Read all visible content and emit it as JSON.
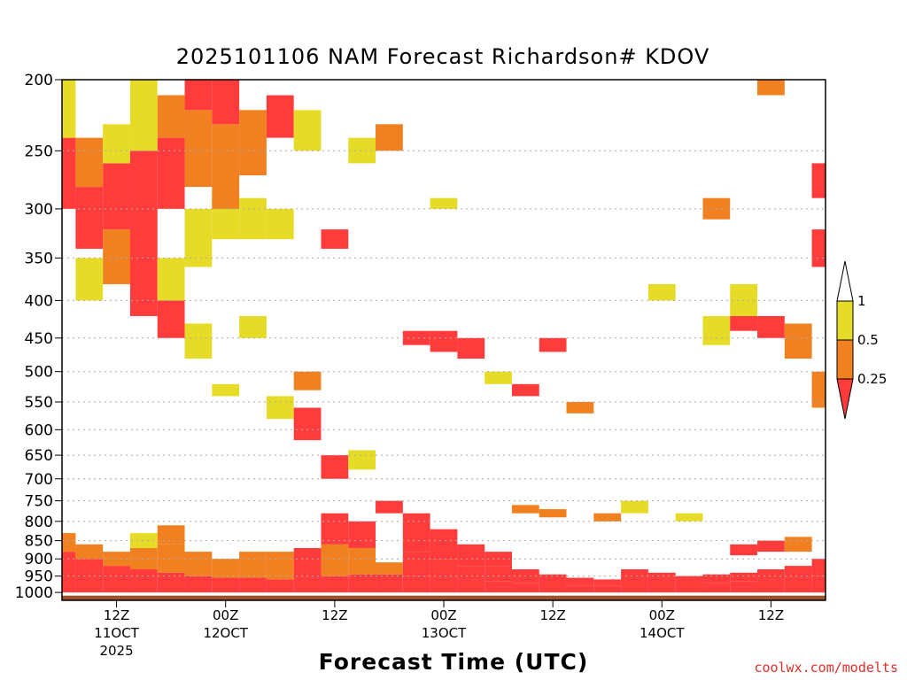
{
  "chart_data": {
    "type": "heatmap",
    "title": "2025101106 NAM Forecast Richardson# KDOV",
    "xlabel": "Forecast Time (UTC)",
    "watermark": "coolwx.com/modelts",
    "y_axis": {
      "ticks": [
        200,
        250,
        300,
        350,
        400,
        450,
        500,
        550,
        600,
        650,
        700,
        750,
        800,
        850,
        900,
        950,
        1000
      ],
      "scale": "log-pressure",
      "range": [
        1025,
        200
      ]
    },
    "x_axis": {
      "range_hours": [
        6,
        90
      ],
      "ticks": [
        {
          "hour": 12,
          "label": "12Z",
          "sub1": "11OCT",
          "sub2": "2025"
        },
        {
          "hour": 24,
          "label": "00Z",
          "sub1": "12OCT",
          "sub2": ""
        },
        {
          "hour": 36,
          "label": "12Z",
          "sub1": "",
          "sub2": ""
        },
        {
          "hour": 48,
          "label": "00Z",
          "sub1": "13OCT",
          "sub2": ""
        },
        {
          "hour": 60,
          "label": "12Z",
          "sub1": "",
          "sub2": ""
        },
        {
          "hour": 72,
          "label": "00Z",
          "sub1": "14OCT",
          "sub2": ""
        },
        {
          "hour": 84,
          "label": "12Z",
          "sub1": "",
          "sub2": ""
        }
      ]
    },
    "legend": {
      "labels": [
        "1",
        "0.5",
        "0.25"
      ],
      "colors": {
        "low": "#ff3b3b",
        "mid": "#f08020",
        "high": "#e6dc28",
        "ground": "#a0522d"
      }
    },
    "grid": "dotted horizontal",
    "series": [
      {
        "hour": 6,
        "bands": [
          [
            1000,
            880,
            "low"
          ],
          [
            880,
            830,
            "mid"
          ],
          [
            300,
            240,
            "low"
          ],
          [
            240,
            200,
            "high"
          ]
        ]
      },
      {
        "hour": 9,
        "bands": [
          [
            1000,
            900,
            "low"
          ],
          [
            900,
            860,
            "mid"
          ],
          [
            340,
            280,
            "low"
          ],
          [
            280,
            240,
            "mid"
          ],
          [
            400,
            350,
            "high"
          ]
        ]
      },
      {
        "hour": 12,
        "bands": [
          [
            1000,
            920,
            "low"
          ],
          [
            920,
            880,
            "mid"
          ],
          [
            380,
            320,
            "mid"
          ],
          [
            320,
            260,
            "low"
          ],
          [
            260,
            230,
            "high"
          ]
        ]
      },
      {
        "hour": 15,
        "bands": [
          [
            1000,
            930,
            "low"
          ],
          [
            930,
            870,
            "mid"
          ],
          [
            870,
            830,
            "high"
          ],
          [
            420,
            360,
            "low"
          ],
          [
            360,
            250,
            "low"
          ],
          [
            250,
            200,
            "high"
          ]
        ]
      },
      {
        "hour": 18,
        "bands": [
          [
            1000,
            940,
            "low"
          ],
          [
            940,
            860,
            "mid"
          ],
          [
            860,
            810,
            "mid"
          ],
          [
            450,
            400,
            "low"
          ],
          [
            400,
            350,
            "high"
          ],
          [
            300,
            240,
            "low"
          ],
          [
            240,
            210,
            "mid"
          ]
        ]
      },
      {
        "hour": 21,
        "bands": [
          [
            1000,
            950,
            "low"
          ],
          [
            950,
            880,
            "mid"
          ],
          [
            480,
            430,
            "high"
          ],
          [
            360,
            300,
            "high"
          ],
          [
            280,
            220,
            "mid"
          ],
          [
            220,
            200,
            "low"
          ]
        ]
      },
      {
        "hour": 24,
        "bands": [
          [
            1000,
            955,
            "low"
          ],
          [
            955,
            900,
            "mid"
          ],
          [
            540,
            520,
            "high"
          ],
          [
            330,
            290,
            "high"
          ],
          [
            300,
            230,
            "mid"
          ],
          [
            230,
            200,
            "low"
          ]
        ]
      },
      {
        "hour": 27,
        "bands": [
          [
            1000,
            955,
            "low"
          ],
          [
            955,
            880,
            "mid"
          ],
          [
            450,
            420,
            "high"
          ],
          [
            330,
            290,
            "high"
          ],
          [
            270,
            220,
            "mid"
          ]
        ]
      },
      {
        "hour": 30,
        "bands": [
          [
            1000,
            960,
            "low"
          ],
          [
            960,
            880,
            "mid"
          ],
          [
            580,
            540,
            "high"
          ],
          [
            330,
            300,
            "high"
          ],
          [
            240,
            210,
            "low"
          ]
        ]
      },
      {
        "hour": 33,
        "bands": [
          [
            1000,
            955,
            "low"
          ],
          [
            955,
            870,
            "low"
          ],
          [
            620,
            560,
            "low"
          ],
          [
            530,
            500,
            "mid"
          ],
          [
            250,
            220,
            "high"
          ]
        ]
      },
      {
        "hour": 36,
        "bands": [
          [
            1000,
            950,
            "low"
          ],
          [
            950,
            860,
            "mid"
          ],
          [
            860,
            780,
            "low"
          ],
          [
            700,
            650,
            "low"
          ],
          [
            340,
            320,
            "low"
          ]
        ]
      },
      {
        "hour": 39,
        "bands": [
          [
            1000,
            945,
            "low"
          ],
          [
            945,
            870,
            "mid"
          ],
          [
            870,
            800,
            "low"
          ],
          [
            680,
            640,
            "high"
          ],
          [
            260,
            240,
            "high"
          ]
        ]
      },
      {
        "hour": 42,
        "bands": [
          [
            1000,
            945,
            "low"
          ],
          [
            945,
            910,
            "mid"
          ],
          [
            780,
            750,
            "low"
          ],
          [
            250,
            230,
            "mid"
          ]
        ]
      },
      {
        "hour": 45,
        "bands": [
          [
            1000,
            950,
            "low"
          ],
          [
            950,
            880,
            "low"
          ],
          [
            880,
            780,
            "low"
          ],
          [
            460,
            440,
            "low"
          ]
        ]
      },
      {
        "hour": 48,
        "bands": [
          [
            1000,
            955,
            "low"
          ],
          [
            955,
            900,
            "low"
          ],
          [
            900,
            820,
            "low"
          ],
          [
            470,
            440,
            "low"
          ],
          [
            300,
            290,
            "high"
          ]
        ]
      },
      {
        "hour": 51,
        "bands": [
          [
            1000,
            960,
            "low"
          ],
          [
            960,
            920,
            "low"
          ],
          [
            920,
            860,
            "low"
          ],
          [
            480,
            450,
            "low"
          ]
        ]
      },
      {
        "hour": 54,
        "bands": [
          [
            1000,
            965,
            "low"
          ],
          [
            965,
            920,
            "low"
          ],
          [
            920,
            880,
            "low"
          ],
          [
            520,
            500,
            "high"
          ]
        ]
      },
      {
        "hour": 57,
        "bands": [
          [
            1000,
            970,
            "low"
          ],
          [
            970,
            930,
            "low"
          ],
          [
            540,
            520,
            "low"
          ],
          [
            780,
            760,
            "mid"
          ]
        ]
      },
      {
        "hour": 60,
        "bands": [
          [
            1000,
            975,
            "low"
          ],
          [
            975,
            945,
            "low"
          ],
          [
            790,
            770,
            "mid"
          ],
          [
            470,
            450,
            "low"
          ]
        ]
      },
      {
        "hour": 63,
        "bands": [
          [
            1000,
            980,
            "low"
          ],
          [
            980,
            955,
            "low"
          ],
          [
            570,
            550,
            "mid"
          ]
        ]
      },
      {
        "hour": 66,
        "bands": [
          [
            1000,
            980,
            "low"
          ],
          [
            980,
            960,
            "low"
          ],
          [
            800,
            780,
            "mid"
          ]
        ]
      },
      {
        "hour": 69,
        "bands": [
          [
            1000,
            975,
            "low"
          ],
          [
            975,
            930,
            "low"
          ],
          [
            780,
            750,
            "high"
          ]
        ]
      },
      {
        "hour": 72,
        "bands": [
          [
            1000,
            975,
            "low"
          ],
          [
            975,
            940,
            "low"
          ],
          [
            400,
            380,
            "high"
          ]
        ]
      },
      {
        "hour": 75,
        "bands": [
          [
            1000,
            975,
            "low"
          ],
          [
            975,
            950,
            "low"
          ],
          [
            800,
            780,
            "high"
          ]
        ]
      },
      {
        "hour": 78,
        "bands": [
          [
            1000,
            970,
            "low"
          ],
          [
            970,
            945,
            "low"
          ],
          [
            460,
            420,
            "high"
          ],
          [
            310,
            290,
            "mid"
          ]
        ]
      },
      {
        "hour": 81,
        "bands": [
          [
            1000,
            965,
            "low"
          ],
          [
            965,
            940,
            "low"
          ],
          [
            890,
            860,
            "low"
          ],
          [
            440,
            420,
            "low"
          ],
          [
            420,
            380,
            "high"
          ]
        ]
      },
      {
        "hour": 84,
        "bands": [
          [
            1000,
            960,
            "low"
          ],
          [
            960,
            930,
            "low"
          ],
          [
            880,
            850,
            "low"
          ],
          [
            450,
            420,
            "low"
          ],
          [
            210,
            200,
            "mid"
          ]
        ]
      },
      {
        "hour": 87,
        "bands": [
          [
            1000,
            955,
            "low"
          ],
          [
            955,
            920,
            "low"
          ],
          [
            880,
            840,
            "mid"
          ],
          [
            480,
            430,
            "mid"
          ]
        ]
      },
      {
        "hour": 90,
        "bands": [
          [
            1000,
            950,
            "low"
          ],
          [
            950,
            900,
            "low"
          ],
          [
            560,
            500,
            "mid"
          ],
          [
            360,
            320,
            "low"
          ],
          [
            290,
            260,
            "low"
          ]
        ]
      }
    ]
  }
}
